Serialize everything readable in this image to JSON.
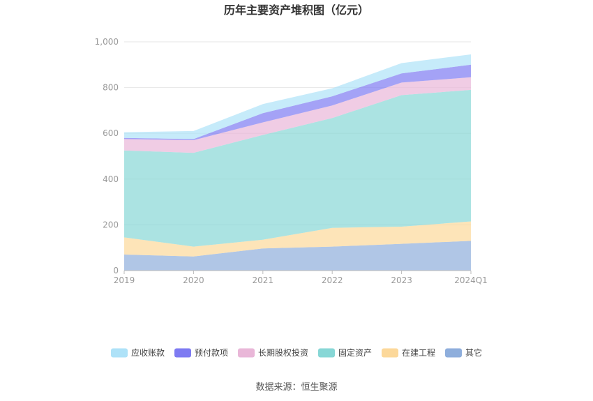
{
  "chart_data": {
    "type": "area",
    "stacked": true,
    "title": "历年主要资产堆积图（亿元）",
    "categories": [
      "2019",
      "2020",
      "2021",
      "2022",
      "2023",
      "2024Q1"
    ],
    "ylim": [
      0,
      1000
    ],
    "yticks": [
      "0",
      "200",
      "400",
      "600",
      "800",
      "1,000"
    ],
    "grid": true,
    "legend_position": "bottom",
    "series": [
      {
        "name": "其它",
        "color": "#8eaedc",
        "values": [
          70,
          62,
          97,
          105,
          117,
          130
        ]
      },
      {
        "name": "在建工程",
        "color": "#fcd89a",
        "values": [
          75,
          43,
          38,
          82,
          75,
          85
        ]
      },
      {
        "name": "固定资产",
        "color": "#87d7d6",
        "values": [
          380,
          410,
          458,
          480,
          575,
          575
        ]
      },
      {
        "name": "长期股权投资",
        "color": "#e9b7d8",
        "values": [
          50,
          55,
          55,
          55,
          55,
          55
        ]
      },
      {
        "name": "预付款项",
        "color": "#7e7bf2",
        "values": [
          5,
          5,
          40,
          40,
          40,
          55
        ]
      },
      {
        "name": "应收账款",
        "color": "#aee2f8",
        "values": [
          25,
          35,
          40,
          35,
          45,
          45
        ]
      }
    ],
    "legend_order": [
      "应收账款",
      "预付款项",
      "长期股权投资",
      "固定资产",
      "在建工程",
      "其它"
    ]
  },
  "source_label": "数据来源：恒生聚源"
}
